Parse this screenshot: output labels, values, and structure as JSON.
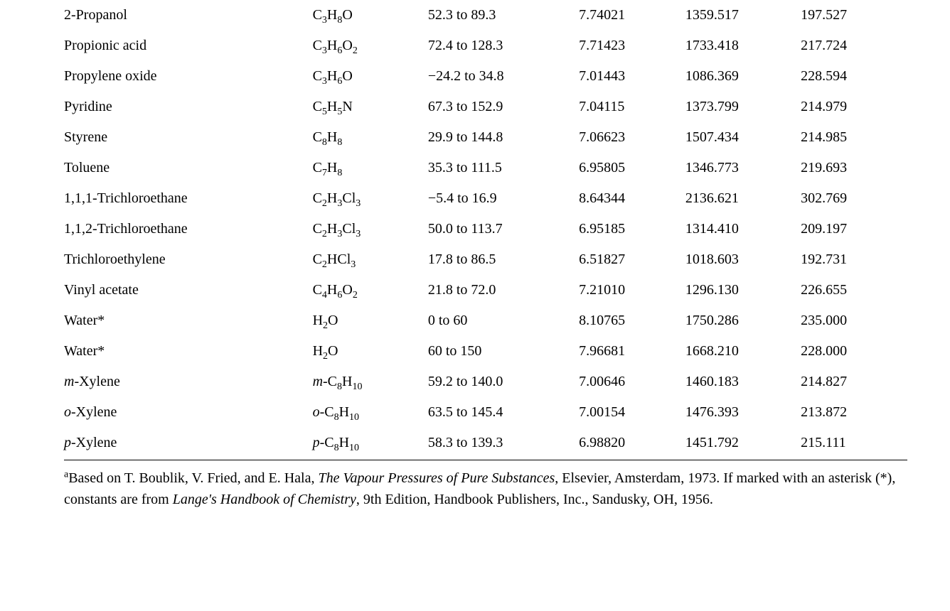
{
  "rows": [
    {
      "name": "2-Propanol",
      "name_prefix_italic": "",
      "name_rest": "2-Propanol",
      "formula_prefix_italic": "",
      "formula_html": "C<sub>3</sub>H<sub>8</sub>O",
      "range": "52.3 to 89.3",
      "A": "7.74021",
      "B": "1359.517",
      "C": "197.527"
    },
    {
      "name": "Propionic acid",
      "name_prefix_italic": "",
      "name_rest": "Propionic acid",
      "formula_prefix_italic": "",
      "formula_html": "C<sub>3</sub>H<sub>6</sub>O<sub>2</sub>",
      "range": "72.4 to 128.3",
      "A": "7.71423",
      "B": "1733.418",
      "C": "217.724"
    },
    {
      "name": "Propylene oxide",
      "name_prefix_italic": "",
      "name_rest": "Propylene oxide",
      "formula_prefix_italic": "",
      "formula_html": "C<sub>3</sub>H<sub>6</sub>O",
      "range": "−24.2 to 34.8",
      "A": "7.01443",
      "B": "1086.369",
      "C": "228.594"
    },
    {
      "name": "Pyridine",
      "name_prefix_italic": "",
      "name_rest": "Pyridine",
      "formula_prefix_italic": "",
      "formula_html": "C<sub>5</sub>H<sub>5</sub>N",
      "range": "67.3 to 152.9",
      "A": "7.04115",
      "B": "1373.799",
      "C": "214.979"
    },
    {
      "name": "Styrene",
      "name_prefix_italic": "",
      "name_rest": "Styrene",
      "formula_prefix_italic": "",
      "formula_html": "C<sub>8</sub>H<sub>8</sub>",
      "range": "29.9 to 144.8",
      "A": "7.06623",
      "B": "1507.434",
      "C": "214.985"
    },
    {
      "name": "Toluene",
      "name_prefix_italic": "",
      "name_rest": "Toluene",
      "formula_prefix_italic": "",
      "formula_html": "C<sub>7</sub>H<sub>8</sub>",
      "range": "35.3 to 111.5",
      "A": "6.95805",
      "B": "1346.773",
      "C": "219.693"
    },
    {
      "name": "1,1,1-Trichloroethane",
      "name_prefix_italic": "",
      "name_rest": "1,1,1-Trichloroethane",
      "formula_prefix_italic": "",
      "formula_html": "C<sub>2</sub>H<sub>3</sub>Cl<sub>3</sub>",
      "range": "−5.4 to 16.9",
      "A": "8.64344",
      "B": "2136.621",
      "C": "302.769"
    },
    {
      "name": "1,1,2-Trichloroethane",
      "name_prefix_italic": "",
      "name_rest": "1,1,2-Trichloroethane",
      "formula_prefix_italic": "",
      "formula_html": "C<sub>2</sub>H<sub>3</sub>Cl<sub>3</sub>",
      "range": "50.0 to 113.7",
      "A": "6.95185",
      "B": "1314.410",
      "C": "209.197"
    },
    {
      "name": "Trichloroethylene",
      "name_prefix_italic": "",
      "name_rest": "Trichloroethylene",
      "formula_prefix_italic": "",
      "formula_html": "C<sub>2</sub>HCl<sub>3</sub>",
      "range": "17.8 to 86.5",
      "A": "6.51827",
      "B": "1018.603",
      "C": "192.731"
    },
    {
      "name": "Vinyl acetate",
      "name_prefix_italic": "",
      "name_rest": "Vinyl acetate",
      "formula_prefix_italic": "",
      "formula_html": "C<sub>4</sub>H<sub>6</sub>O<sub>2</sub>",
      "range": "21.8 to 72.0",
      "A": "7.21010",
      "B": "1296.130",
      "C": "226.655"
    },
    {
      "name": "Water*",
      "name_prefix_italic": "",
      "name_rest": "Water*",
      "formula_prefix_italic": "",
      "formula_html": "H<sub>2</sub>O",
      "range": "0 to 60",
      "A": "8.10765",
      "B": "1750.286",
      "C": "235.000"
    },
    {
      "name": "Water*",
      "name_prefix_italic": "",
      "name_rest": "Water*",
      "formula_prefix_italic": "",
      "formula_html": "H<sub>2</sub>O",
      "range": "60 to 150",
      "A": "7.96681",
      "B": "1668.210",
      "C": "228.000"
    },
    {
      "name": "m-Xylene",
      "name_prefix_italic": "m",
      "name_rest": "-Xylene",
      "formula_prefix_italic": "m",
      "formula_html": "-C<sub>8</sub>H<sub>10</sub>",
      "range": "59.2 to 140.0",
      "A": "7.00646",
      "B": "1460.183",
      "C": "214.827"
    },
    {
      "name": "o-Xylene",
      "name_prefix_italic": "o",
      "name_rest": "-Xylene",
      "formula_prefix_italic": "o",
      "formula_html": "-C<sub>8</sub>H<sub>10</sub>",
      "range": "63.5 to 145.4",
      "A": "7.00154",
      "B": "1476.393",
      "C": "213.872"
    },
    {
      "name": "p-Xylene",
      "name_prefix_italic": "p",
      "name_rest": "-Xylene",
      "formula_prefix_italic": "p",
      "formula_html": "-C<sub>8</sub>H<sub>10</sub>",
      "range": "58.3 to 139.3",
      "A": "6.98820",
      "B": "1451.792",
      "C": "215.111"
    }
  ],
  "footnote": {
    "sup": "a",
    "t1": "Based on T. Boublik, V. Fried, and E. Hala, ",
    "i1": "The Vapour Pressures of Pure Substances",
    "t2": ", Elsevier, Amsterdam, 1973. If marked with an asterisk (*), constants are from ",
    "i2": "Lange's Handbook of Chemistry",
    "t3": ", 9th Edition, Handbook Publishers, Inc., Sandusky, OH, 1956."
  }
}
